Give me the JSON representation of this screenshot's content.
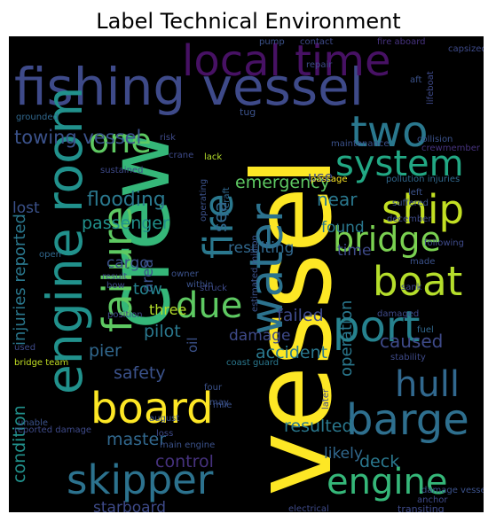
{
  "title": "Label Technical Environment",
  "words": [
    {
      "text": "fishing vessel",
      "color": "#3e4a89"
    },
    {
      "text": "local time",
      "color": "#471164"
    },
    {
      "text": "crew",
      "color": "#35b779"
    },
    {
      "text": "vessel",
      "color": "#fde725"
    },
    {
      "text": "engine room",
      "color": "#21918c"
    },
    {
      "text": "two",
      "color": "#2a788e"
    },
    {
      "text": "one",
      "color": "#5ec962"
    },
    {
      "text": "system",
      "color": "#22a884"
    },
    {
      "text": "ship",
      "color": "#c2df23"
    },
    {
      "text": "fire",
      "color": "#2a788e"
    },
    {
      "text": "water",
      "color": "#2c728e"
    },
    {
      "text": "failure",
      "color": "#5ec962"
    },
    {
      "text": "bridge",
      "color": "#7ad151"
    },
    {
      "text": "boat",
      "color": "#b5de2b"
    },
    {
      "text": "port",
      "color": "#26828e"
    },
    {
      "text": "due",
      "color": "#5ec962"
    },
    {
      "text": "hull",
      "color": "#31688e"
    },
    {
      "text": "board",
      "color": "#fde725"
    },
    {
      "text": "barge",
      "color": "#2e6f8e"
    },
    {
      "text": "skipper",
      "color": "#2c728e"
    },
    {
      "text": "engine",
      "color": "#35b779"
    },
    {
      "text": "towing vessel",
      "color": "#3b528b"
    },
    {
      "text": "flooding",
      "color": "#2a788e"
    },
    {
      "text": "emergency",
      "color": "#5ec962"
    },
    {
      "text": "use",
      "color": "#3e4a89"
    },
    {
      "text": "near",
      "color": "#2a788e"
    },
    {
      "text": "lost",
      "color": "#3b528b"
    },
    {
      "text": "passenger",
      "color": "#21918c"
    },
    {
      "text": "resulting",
      "color": "#31688e"
    },
    {
      "text": "found",
      "color": "#2a788e"
    },
    {
      "text": "time",
      "color": "#3e4a89"
    },
    {
      "text": "sea",
      "color": "#31688e"
    },
    {
      "text": "area",
      "color": "#3b528b"
    },
    {
      "text": "injuries reported",
      "color": "#2a788e"
    },
    {
      "text": "cargo",
      "color": "#3b528b"
    },
    {
      "text": "tow",
      "color": "#26828e"
    },
    {
      "text": "three",
      "color": "#b5de2b"
    },
    {
      "text": "pilot",
      "color": "#2a788e"
    },
    {
      "text": "operation",
      "color": "#2a788e"
    },
    {
      "text": "caused",
      "color": "#3e4a89"
    },
    {
      "text": "oil",
      "color": "#3b528b"
    },
    {
      "text": "damage",
      "color": "#3e4a89"
    },
    {
      "text": "accident",
      "color": "#2a788e"
    },
    {
      "text": "failed",
      "color": "#3e4a89"
    },
    {
      "text": "pier",
      "color": "#31688e"
    },
    {
      "text": "safety",
      "color": "#3b528b"
    },
    {
      "text": "condition",
      "color": "#21918c"
    },
    {
      "text": "master",
      "color": "#31688e"
    },
    {
      "text": "control",
      "color": "#46327e"
    },
    {
      "text": "resulted",
      "color": "#2a788e"
    },
    {
      "text": "likely",
      "color": "#31688e"
    },
    {
      "text": "deck",
      "color": "#2a788e"
    },
    {
      "text": "starboard",
      "color": "#3e4a89"
    },
    {
      "text": "pump",
      "color": "#3b528b"
    },
    {
      "text": "contact",
      "color": "#3e4a89"
    },
    {
      "text": "fire aboard",
      "color": "#46327e"
    },
    {
      "text": "capsized",
      "color": "#3e4a89"
    },
    {
      "text": "grounded",
      "color": "#31688e"
    },
    {
      "text": "repair",
      "color": "#3e4a89"
    },
    {
      "text": "aft",
      "color": "#3b528b"
    },
    {
      "text": "tug",
      "color": "#3b528b"
    },
    {
      "text": "lifeboat",
      "color": "#3e4a89"
    },
    {
      "text": "risk",
      "color": "#3e4a89"
    },
    {
      "text": "crane",
      "color": "#3e4a89"
    },
    {
      "text": "collision",
      "color": "#3b528b"
    },
    {
      "text": "crewmember",
      "color": "#46327e"
    },
    {
      "text": "maintenance",
      "color": "#3b528b"
    },
    {
      "text": "sustained",
      "color": "#3e4a89"
    },
    {
      "text": "lack",
      "color": "#b5de2b"
    },
    {
      "text": "passage",
      "color": "#fde725"
    },
    {
      "text": "pollution injuries",
      "color": "#31688e"
    },
    {
      "text": "left",
      "color": "#3b528b"
    },
    {
      "text": "suffered",
      "color": "#3b528b"
    },
    {
      "text": "december",
      "color": "#3e4a89"
    },
    {
      "text": "estimated million",
      "color": "#3b528b"
    },
    {
      "text": "liferaft",
      "color": "#31688e"
    },
    {
      "text": "following",
      "color": "#3e4a89"
    },
    {
      "text": "made",
      "color": "#3b528b"
    },
    {
      "text": "sank",
      "color": "#3e4a89"
    },
    {
      "text": "open",
      "color": "#31688e"
    },
    {
      "text": "result",
      "color": "#3e4a89"
    },
    {
      "text": "bow",
      "color": "#3e4a89"
    },
    {
      "text": "within",
      "color": "#3b528b"
    },
    {
      "text": "struck",
      "color": "#3e4a89"
    },
    {
      "text": "owner",
      "color": "#3b528b"
    },
    {
      "text": "position",
      "color": "#3e4a89"
    },
    {
      "text": "fuel",
      "color": "#31688e"
    },
    {
      "text": "used",
      "color": "#3e4a89"
    },
    {
      "text": "four",
      "color": "#3b528b"
    },
    {
      "text": "bridge team",
      "color": "#c2df23"
    },
    {
      "text": "damaged",
      "color": "#3e4a89"
    },
    {
      "text": "may",
      "color": "#3b528b"
    },
    {
      "text": "stability",
      "color": "#3e4a89"
    },
    {
      "text": "mile",
      "color": "#3b528b"
    },
    {
      "text": "later",
      "color": "#3e4a89"
    },
    {
      "text": "august",
      "color": "#3b528b"
    },
    {
      "text": "reported damage",
      "color": "#3e4a89"
    },
    {
      "text": "loss",
      "color": "#3e4a89"
    },
    {
      "text": "main engine",
      "color": "#3b528b"
    },
    {
      "text": "electrical",
      "color": "#3e4a89"
    },
    {
      "text": "damage vessel",
      "color": "#3b528b"
    },
    {
      "text": "anchor",
      "color": "#3e4a89"
    },
    {
      "text": "transiting",
      "color": "#3e4a89"
    },
    {
      "text": "coast guard",
      "color": "#2a788e"
    },
    {
      "text": "operating",
      "color": "#3b528b"
    },
    {
      "text": "unable",
      "color": "#3b528b"
    }
  ]
}
